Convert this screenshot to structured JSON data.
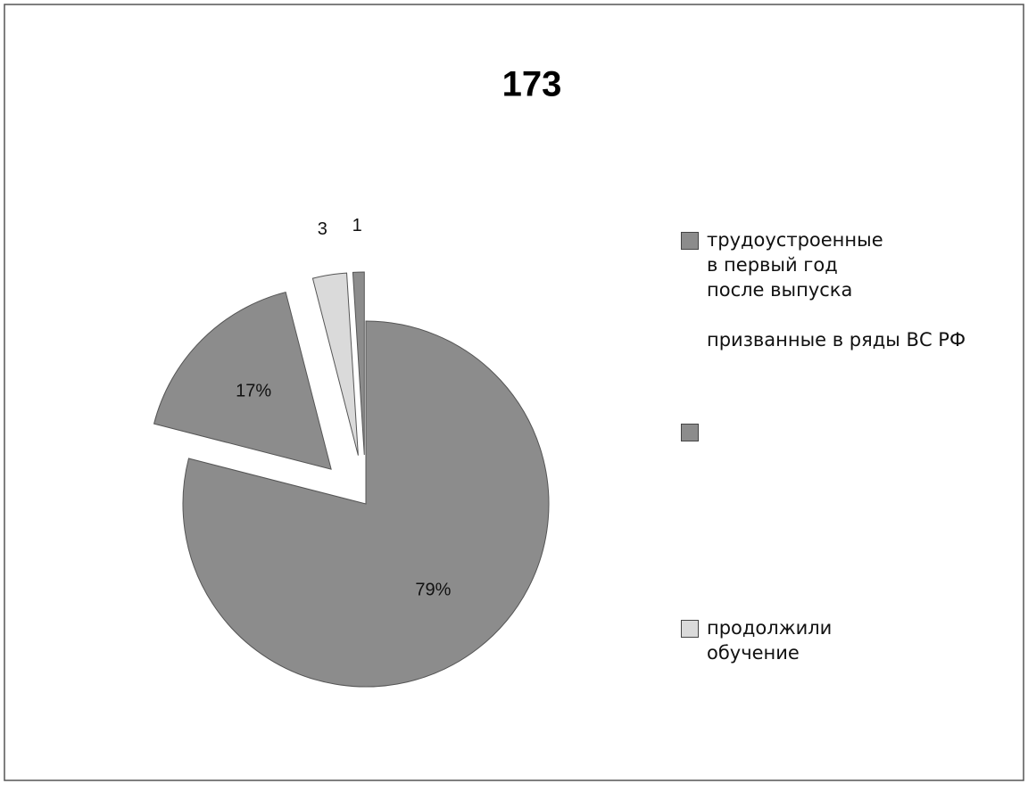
{
  "chart_data": {
    "type": "pie",
    "title": "173",
    "categories": [
      "трудоустроенные в первый год после выпуска",
      "призванные в ряды ВС РФ",
      "продолжили обучение",
      null
    ],
    "values": [
      79,
      17,
      3,
      1
    ],
    "value_labels": [
      "79%",
      "17%",
      "3",
      "1"
    ],
    "colors": [
      "#8c8c8c",
      "#8c8c8c",
      "#dadada",
      "#8c8c8c"
    ]
  }
}
